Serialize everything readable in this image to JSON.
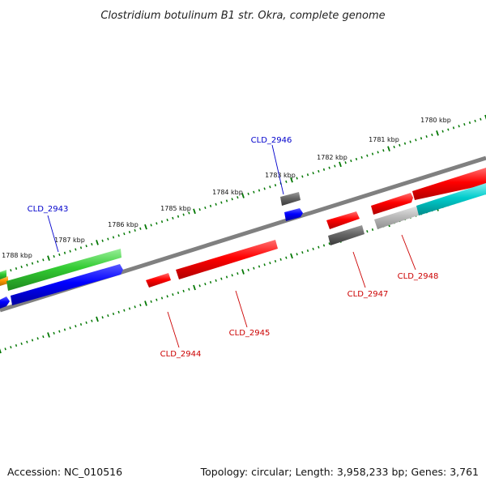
{
  "title": "Clostridium botulinum B1 str. Okra, complete genome",
  "footer": {
    "accession": "Accession: NC_010516",
    "summary": "Topology: circular; Length: 3,958,233 bp; Genes: 3,761"
  },
  "ruler_labels": [
    "1788 kbp",
    "1787 kbp",
    "1786 kbp",
    "1785 kbp",
    "1784 kbp",
    "1783 kbp",
    "1782 kbp",
    "1781 kbp",
    "1780 kbp"
  ],
  "colors": {
    "red": "#ff0000",
    "blue": "#0000ff",
    "green": "#33cc33",
    "gray": "#666666",
    "light_gray": "#bbbbbb",
    "cyan": "#00cccc",
    "orange": "#ff9900",
    "tick_green": "#007700",
    "backbone": "#808080"
  },
  "gene_labels": [
    {
      "text": "CLD_2943",
      "color": "#0000cc"
    },
    {
      "text": "CLD_2946",
      "color": "#0000cc"
    },
    {
      "text": "CLD_2944",
      "color": "#cc0000"
    },
    {
      "text": "CLD_2945",
      "color": "#cc0000"
    },
    {
      "text": "CLD_2947",
      "color": "#cc0000"
    },
    {
      "text": "CLD_2948",
      "color": "#cc0000"
    }
  ]
}
